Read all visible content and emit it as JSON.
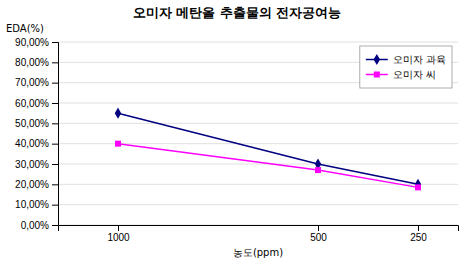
{
  "chart_data": {
    "type": "line",
    "title": "오미자 메탄올 추출물의 전자공여능",
    "xlabel": "농도(ppm)",
    "ylabel": "EDA(%)",
    "x": [
      1000,
      500,
      250
    ],
    "series": [
      {
        "name": "오미자 과육",
        "color": "#000080",
        "marker": "diamond",
        "line_style": "solid",
        "values": [
          0.55,
          0.3,
          0.2
        ]
      },
      {
        "name": "오미자 씨",
        "color": "#FF00FF",
        "marker": "square",
        "line_style": "solid",
        "values": [
          0.4,
          0.27,
          0.185
        ]
      }
    ],
    "xlim": [
      1150,
      150
    ],
    "xticks": [
      1000,
      500,
      250
    ],
    "ylim": [
      0.0,
      0.9
    ],
    "yticks": [
      {
        "value": 0.0,
        "label": "0,00%"
      },
      {
        "value": 0.1,
        "label": "10,00%"
      },
      {
        "value": 0.2,
        "label": "20,00%"
      },
      {
        "value": 0.3,
        "label": "30,00%"
      },
      {
        "value": 0.4,
        "label": "40,00%"
      },
      {
        "value": 0.5,
        "label": "50,00%"
      },
      {
        "value": 0.6,
        "label": "60,00%"
      },
      {
        "value": 0.7,
        "label": "70,00%"
      },
      {
        "value": 0.8,
        "label": "80,00%"
      },
      {
        "value": 0.9,
        "label": "90,00%"
      }
    ],
    "grid": true,
    "legend": "upper right"
  }
}
